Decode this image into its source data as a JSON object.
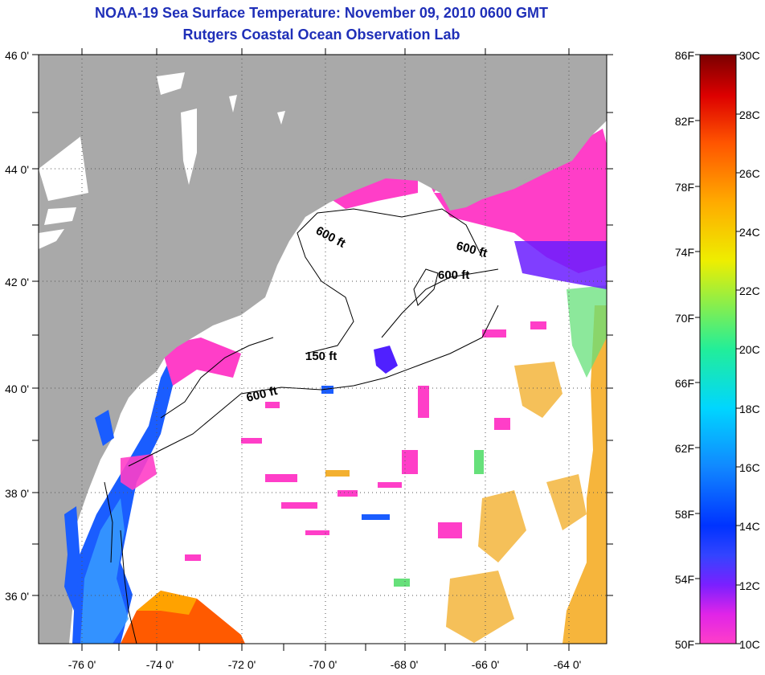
{
  "header": {
    "title_line1": "NOAA-19 Sea Surface Temperature:  November 09, 2010 0600 GMT",
    "title_line2": "Rutgers Coastal Ocean Observation Lab"
  },
  "map": {
    "lat_labels": [
      "46 0'",
      "44 0'",
      "42 0'",
      "40 0'",
      "38 0'",
      "36 0'"
    ],
    "lon_labels": [
      "-76 0'",
      "-74 0'",
      "-72 0'",
      "-70 0'",
      "-68 0'",
      "-66 0'",
      "-64 0'"
    ],
    "contour_labels": [
      "600 ft",
      "600 ft",
      "600 ft",
      "150 ft",
      "600 ft"
    ]
  },
  "colorbar": {
    "fahrenheit_labels": [
      "86F",
      "82F",
      "78F",
      "74F",
      "70F",
      "66F",
      "62F",
      "58F",
      "54F",
      "50F"
    ],
    "celsius_labels": [
      "30C",
      "28C",
      "26C",
      "24C",
      "22C",
      "20C",
      "18C",
      "16C",
      "14C",
      "12C",
      "10C"
    ]
  },
  "colors": {
    "land": "#a9a9a9",
    "cloud": "#ffffff",
    "title": "#1f2fb8"
  }
}
